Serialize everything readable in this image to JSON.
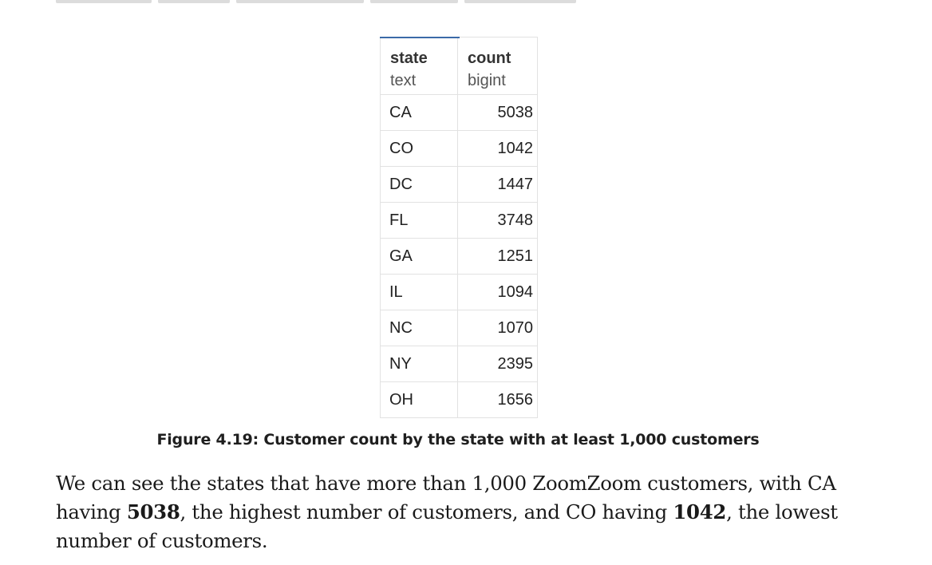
{
  "table": {
    "columns": [
      {
        "name": "state",
        "type": "text"
      },
      {
        "name": "count",
        "type": "bigint"
      }
    ],
    "rows": [
      {
        "state": "CA",
        "count": "5038"
      },
      {
        "state": "CO",
        "count": "1042"
      },
      {
        "state": "DC",
        "count": "1447"
      },
      {
        "state": "FL",
        "count": "3748"
      },
      {
        "state": "GA",
        "count": "1251"
      },
      {
        "state": "IL",
        "count": "1094"
      },
      {
        "state": "NC",
        "count": "1070"
      },
      {
        "state": "NY",
        "count": "2395"
      },
      {
        "state": "OH",
        "count": "1656"
      }
    ]
  },
  "caption": "Figure 4.19: Customer count by the state with at least 1,000 customers",
  "paragraph": {
    "part1": "We can see the states that have more than 1,000 ZoomZoom customers, with CA having ",
    "bold1": "5038",
    "part2": ", the highest number of customers, and CO having ",
    "bold2": "1042",
    "part3": ", the lowest number of customers."
  },
  "colors": {
    "accent": "#3b6aa8",
    "grid_border": "#e2e2e2"
  }
}
